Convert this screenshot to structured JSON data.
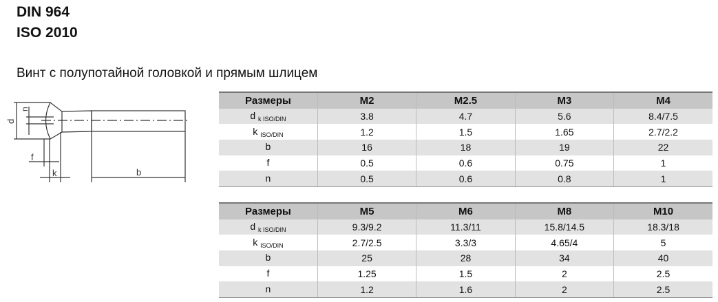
{
  "title_lines": [
    "DIN 964",
    "ISO 2010"
  ],
  "subtitle": "Винт с полупотайной головкой и прямым шлицем",
  "diagram_labels": {
    "dk": "d",
    "dk_sub": "k",
    "n": "n",
    "f": "f",
    "k": "k",
    "b": "b"
  },
  "tables": [
    {
      "headers": [
        "Размеры",
        "M2",
        "M2.5",
        "M3",
        "M4"
      ],
      "rows": [
        {
          "label": "d",
          "sub": "k ISO/DIN",
          "values": [
            "3.8",
            "4.7",
            "5.6",
            "8.4/7.5"
          ]
        },
        {
          "label": "k",
          "sub": "ISO/DIN",
          "values": [
            "1.2",
            "1.5",
            "1.65",
            "2.7/2.2"
          ]
        },
        {
          "label": "b",
          "sub": "",
          "values": [
            "16",
            "18",
            "19",
            "22"
          ]
        },
        {
          "label": "f",
          "sub": "",
          "values": [
            "0.5",
            "0.6",
            "0.75",
            "1"
          ]
        },
        {
          "label": "n",
          "sub": "",
          "values": [
            "0.5",
            "0.6",
            "0.8",
            "1"
          ]
        }
      ]
    },
    {
      "headers": [
        "Размеры",
        "M5",
        "M6",
        "M8",
        "M10"
      ],
      "rows": [
        {
          "label": "d",
          "sub": "k ISO/DIN",
          "values": [
            "9.3/9.2",
            "11.3/11",
            "15.8/14.5",
            "18.3/18"
          ]
        },
        {
          "label": "k",
          "sub": "ISO/DIN",
          "values": [
            "2.7/2.5",
            "3.3/3",
            "4.65/4",
            "5"
          ]
        },
        {
          "label": "b",
          "sub": "",
          "values": [
            "25",
            "28",
            "34",
            "40"
          ]
        },
        {
          "label": "f",
          "sub": "",
          "values": [
            "1.25",
            "1.5",
            "2",
            "2.5"
          ]
        },
        {
          "label": "n",
          "sub": "",
          "values": [
            "1.2",
            "1.6",
            "2",
            "2.5"
          ]
        }
      ]
    }
  ]
}
